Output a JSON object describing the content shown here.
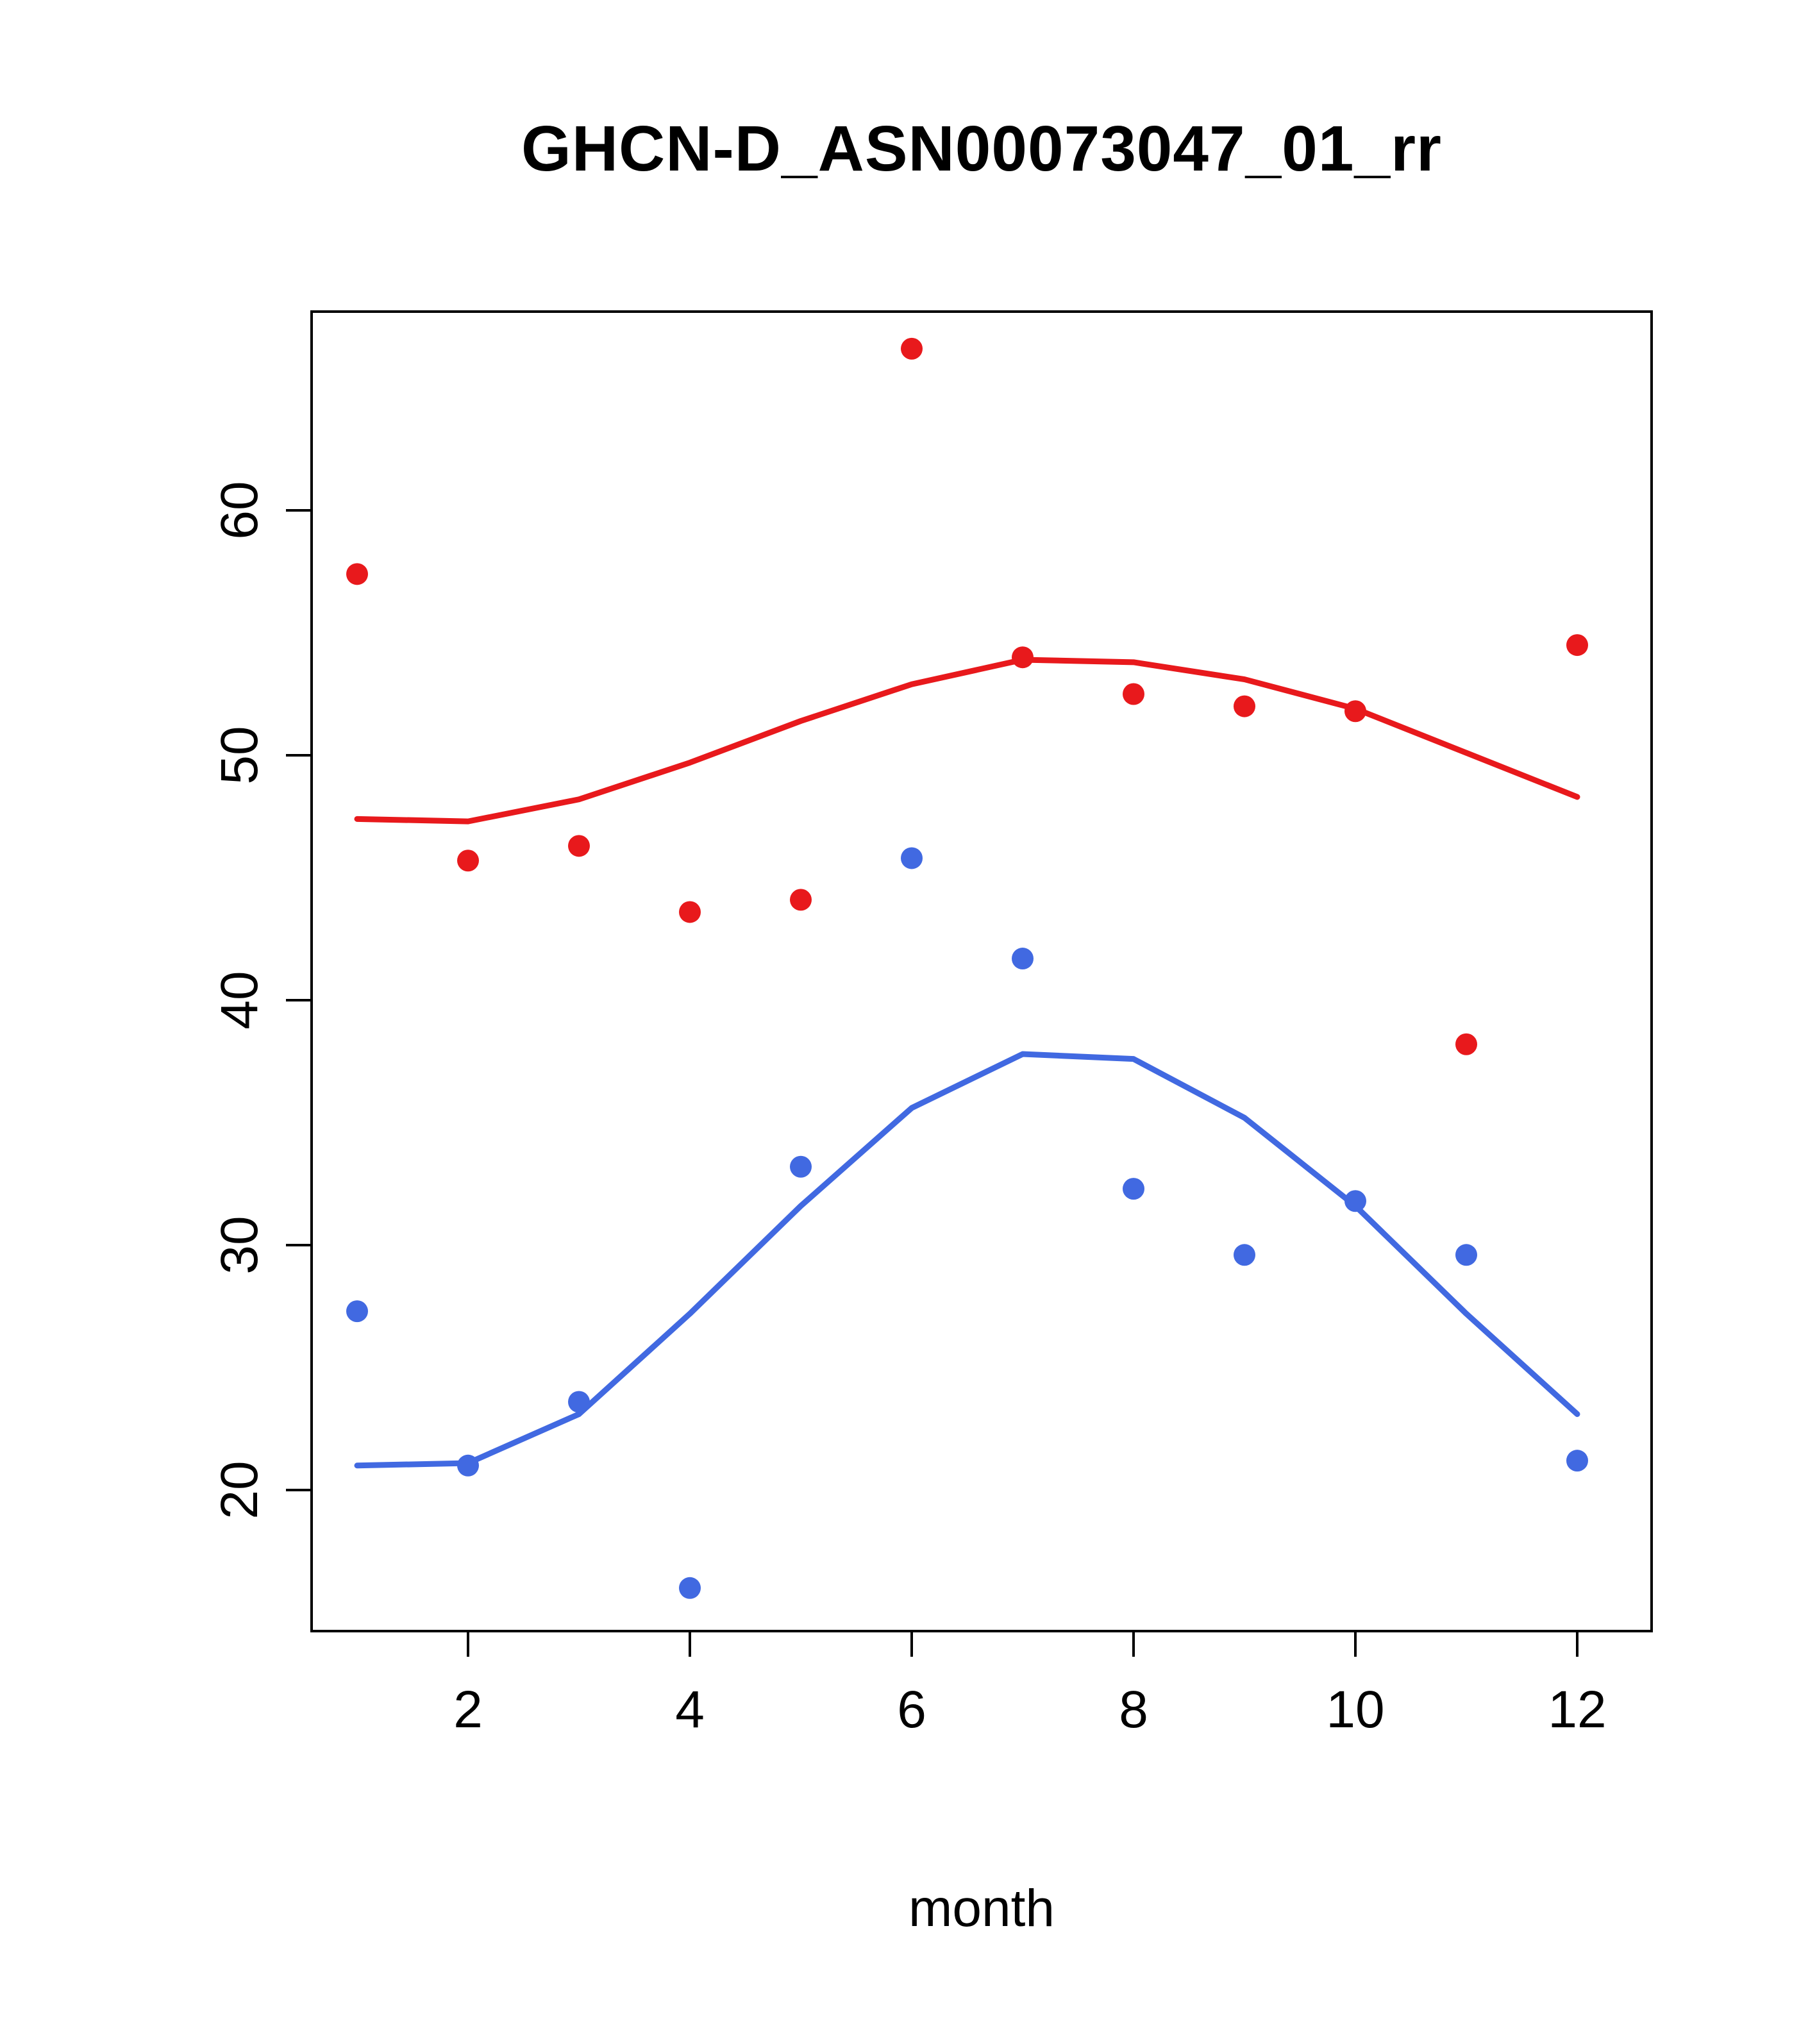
{
  "title": "GHCN-D_ASN00073047_01_rr",
  "chart_data": {
    "type": "scatter",
    "title": "GHCN-D_ASN00073047_01_rr",
    "xlabel": "month",
    "ylabel": "",
    "x": [
      1,
      2,
      3,
      4,
      5,
      6,
      7,
      8,
      9,
      10,
      11,
      12
    ],
    "xticks": [
      2,
      4,
      6,
      8,
      10,
      12
    ],
    "yticks": [
      20,
      30,
      40,
      50,
      60
    ],
    "xlim": [
      0.56,
      12.44
    ],
    "ylim": [
      14.2,
      68.1
    ],
    "grid": false,
    "legend": "none",
    "colors": {
      "red": "#e8191c",
      "blue": "#4169e1",
      "axis": "#000000"
    },
    "series": [
      {
        "name": "red-points",
        "kind": "points",
        "color": "#e8191c",
        "values": [
          57.4,
          45.7,
          46.3,
          43.6,
          44.1,
          66.6,
          54.0,
          52.5,
          52.0,
          51.8,
          38.2,
          54.5
        ]
      },
      {
        "name": "red-smooth-line",
        "kind": "line",
        "color": "#e8191c",
        "values": [
          47.4,
          47.3,
          48.2,
          49.7,
          51.4,
          52.9,
          53.9,
          53.8,
          53.1,
          51.9,
          50.1,
          48.3
        ]
      },
      {
        "name": "blue-points",
        "kind": "points",
        "color": "#4169e1",
        "values": [
          27.3,
          21.0,
          23.6,
          16.0,
          33.2,
          45.8,
          41.7,
          32.3,
          29.6,
          31.8,
          29.6,
          21.2
        ]
      },
      {
        "name": "blue-smooth-line",
        "kind": "line",
        "color": "#4169e1",
        "values": [
          21.0,
          21.1,
          23.1,
          27.2,
          31.6,
          35.6,
          37.8,
          37.6,
          35.2,
          31.6,
          27.2,
          23.1
        ]
      }
    ]
  }
}
